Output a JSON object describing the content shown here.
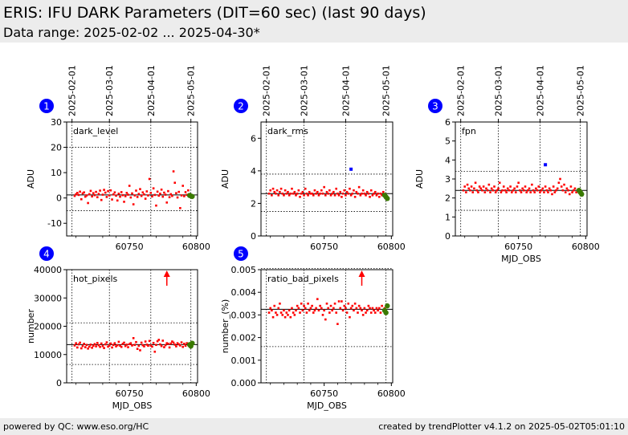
{
  "header": {
    "title": "ERIS: IFU DARK Parameters (DIT=60 sec) (last 90 days)",
    "subtitle": "Data range: 2025-02-02 ... 2025-04-30*"
  },
  "footer": {
    "left": "powered by QC: www.eso.org/HC",
    "right": "created by trendPlotter v4.1.2 on 2025-05-02T05:01:10"
  },
  "colors": {
    "data": "#ff0000",
    "outlier": "#0000ff",
    "latest": "#3a7a00",
    "badge": "#0000ff",
    "header_bg": "#ececec"
  },
  "chart_data": [
    {
      "type": "scatter",
      "badge": "1",
      "name": "dark_level",
      "ylabel": "ADU",
      "xlabel": "",
      "xlim": [
        60703,
        60801
      ],
      "ylim": [
        -15,
        30
      ],
      "yticks": [
        -10,
        0,
        10,
        20,
        30
      ],
      "xticks": [
        60750,
        60800
      ],
      "date_ticks": [
        {
          "x": 60707,
          "label": "2025-02-01"
        },
        {
          "x": 60735,
          "label": "2025-03-01"
        },
        {
          "x": 60766,
          "label": "2025-04-01"
        },
        {
          "x": 60796,
          "label": "2025-05-01"
        }
      ],
      "ref_line": 1.2,
      "limits": [
        -5,
        20
      ],
      "x": [
        60709,
        60710,
        60711,
        60712,
        60713,
        60714,
        60715,
        60716,
        60717,
        60718,
        60719,
        60720,
        60721,
        60722,
        60723,
        60724,
        60725,
        60726,
        60727,
        60728,
        60729,
        60730,
        60731,
        60732,
        60733,
        60734,
        60735,
        60736,
        60737,
        60738,
        60739,
        60740,
        60741,
        60742,
        60743,
        60744,
        60745,
        60746,
        60747,
        60748,
        60749,
        60750,
        60751,
        60752,
        60753,
        60754,
        60755,
        60756,
        60757,
        60758,
        60759,
        60760,
        60761,
        60762,
        60763,
        60764,
        60765,
        60766,
        60767,
        60768,
        60769,
        60770,
        60771,
        60772,
        60773,
        60774,
        60775,
        60776,
        60777,
        60778,
        60779,
        60780,
        60781,
        60782,
        60783,
        60784,
        60785,
        60786,
        60787,
        60788,
        60789,
        60790,
        60791,
        60792,
        60793,
        60794,
        60795
      ],
      "y": [
        0.8,
        1.5,
        2.0,
        1.2,
        2.5,
        -0.5,
        1.8,
        2.2,
        0.5,
        1.0,
        -2.0,
        1.5,
        2.8,
        0.6,
        1.9,
        1.1,
        2.4,
        0.3,
        1.6,
        2.9,
        -0.8,
        1.3,
        3.2,
        2.1,
        0.4,
        2.7,
        1.0,
        3.0,
        -0.6,
        1.4,
        2.2,
        0.9,
        -1.0,
        1.7,
        0.5,
        2.3,
        1.1,
        -1.5,
        0.7,
        2.0,
        1.3,
        4.8,
        0.2,
        1.8,
        -2.5,
        1.0,
        2.9,
        0.4,
        1.6,
        3.5,
        0.8,
        2.2,
        1.4,
        -0.3,
        2.6,
        1.0,
        7.5,
        2.0,
        0.6,
        3.8,
        1.2,
        -3.0,
        2.5,
        0.9,
        1.7,
        3.3,
        0.5,
        2.1,
        1.3,
        -1.8,
        2.7,
        0.3,
        1.5,
        0.8,
        10.5,
        6.0,
        1.9,
        0.2,
        2.4,
        -4.0,
        1.0,
        4.8,
        0.7,
        2.3,
        1.2,
        3.0,
        0.5
      ],
      "latest_x": [
        60795,
        60796,
        60797
      ],
      "latest_y": [
        1.0,
        0.8,
        0.6
      ],
      "outliers": []
    },
    {
      "type": "scatter",
      "badge": "2",
      "name": "dark_rms",
      "ylabel": "ADU",
      "xlabel": "",
      "xlim": [
        60703,
        60801
      ],
      "ylim": [
        0,
        7
      ],
      "yticks": [
        0,
        2,
        4,
        6
      ],
      "xticks": [
        60750,
        60800
      ],
      "date_ticks": [
        {
          "x": 60707,
          "label": "2025-02-01"
        },
        {
          "x": 60735,
          "label": "2025-03-01"
        },
        {
          "x": 60766,
          "label": "2025-04-01"
        },
        {
          "x": 60796,
          "label": "2025-05-01"
        }
      ],
      "ref_line": 2.6,
      "limits": [
        1.5,
        3.8
      ],
      "x": [
        60709,
        60710,
        60711,
        60712,
        60713,
        60714,
        60715,
        60716,
        60717,
        60718,
        60719,
        60720,
        60721,
        60722,
        60723,
        60724,
        60725,
        60726,
        60727,
        60728,
        60729,
        60730,
        60731,
        60732,
        60733,
        60734,
        60735,
        60736,
        60737,
        60738,
        60739,
        60740,
        60741,
        60742,
        60743,
        60744,
        60745,
        60746,
        60747,
        60748,
        60749,
        60750,
        60751,
        60752,
        60753,
        60754,
        60755,
        60756,
        60757,
        60758,
        60759,
        60760,
        60761,
        60762,
        60763,
        60764,
        60765,
        60766,
        60767,
        60768,
        60769,
        60770,
        60771,
        60772,
        60773,
        60774,
        60775,
        60776,
        60777,
        60778,
        60779,
        60780,
        60781,
        60782,
        60783,
        60784,
        60785,
        60786,
        60787,
        60788,
        60789,
        60790,
        60791,
        60792,
        60793,
        60794,
        60795
      ],
      "y": [
        2.6,
        2.8,
        2.5,
        2.9,
        2.7,
        2.6,
        2.8,
        2.5,
        2.7,
        2.9,
        2.6,
        2.5,
        2.8,
        2.6,
        2.7,
        2.5,
        2.6,
        2.9,
        2.6,
        2.7,
        2.5,
        2.6,
        2.8,
        2.4,
        2.6,
        2.7,
        2.5,
        2.9,
        2.6,
        2.5,
        2.7,
        2.6,
        2.6,
        2.5,
        2.8,
        2.6,
        2.7,
        2.5,
        2.6,
        2.8,
        2.6,
        3.0,
        2.5,
        2.7,
        2.6,
        2.8,
        2.5,
        2.6,
        2.7,
        2.5,
        2.9,
        2.6,
        2.5,
        2.7,
        2.4,
        2.6,
        2.8,
        2.5,
        2.7,
        2.6,
        2.9,
        2.5,
        2.6,
        2.8,
        2.4,
        2.7,
        2.6,
        3.0,
        2.5,
        2.6,
        2.8,
        2.6,
        2.5,
        2.7,
        2.6,
        2.4,
        2.8,
        2.5,
        2.6,
        2.7,
        2.5,
        2.6,
        2.4,
        2.6,
        2.5,
        2.7,
        2.5
      ],
      "latest_x": [
        60795,
        60796,
        60797
      ],
      "latest_y": [
        2.5,
        2.4,
        2.3
      ],
      "outliers": [
        {
          "x": 60770,
          "y": 4.1
        }
      ]
    },
    {
      "type": "scatter",
      "badge": "3",
      "name": "fpn",
      "ylabel": "ADU",
      "xlabel": "MJD_OBS",
      "xlim": [
        60703,
        60801
      ],
      "ylim": [
        0,
        6
      ],
      "yticks": [
        0,
        1,
        2,
        3,
        4,
        5,
        6
      ],
      "xticks": [
        60750,
        60800
      ],
      "date_ticks": [
        {
          "x": 60707,
          "label": "2025-02-01"
        },
        {
          "x": 60735,
          "label": "2025-03-01"
        },
        {
          "x": 60766,
          "label": "2025-04-01"
        },
        {
          "x": 60796,
          "label": "2025-05-01"
        }
      ],
      "ref_line": 2.4,
      "limits": [
        1.35,
        3.4
      ],
      "x": [
        60709,
        60710,
        60711,
        60712,
        60713,
        60714,
        60715,
        60716,
        60717,
        60718,
        60719,
        60720,
        60721,
        60722,
        60723,
        60724,
        60725,
        60726,
        60727,
        60728,
        60729,
        60730,
        60731,
        60732,
        60733,
        60734,
        60735,
        60736,
        60737,
        60738,
        60739,
        60740,
        60741,
        60742,
        60743,
        60744,
        60745,
        60746,
        60747,
        60748,
        60749,
        60750,
        60751,
        60752,
        60753,
        60754,
        60755,
        60756,
        60757,
        60758,
        60759,
        60760,
        60761,
        60762,
        60763,
        60764,
        60765,
        60766,
        60767,
        60768,
        60769,
        60770,
        60771,
        60772,
        60773,
        60774,
        60775,
        60776,
        60777,
        60778,
        60779,
        60780,
        60781,
        60782,
        60783,
        60784,
        60785,
        60786,
        60787,
        60788,
        60789,
        60790,
        60791,
        60792,
        60793,
        60794,
        60795
      ],
      "y": [
        2.4,
        2.6,
        2.3,
        2.7,
        2.5,
        2.4,
        2.6,
        2.3,
        2.5,
        2.8,
        2.4,
        2.3,
        2.6,
        2.5,
        2.4,
        2.6,
        2.3,
        2.5,
        2.4,
        2.7,
        2.3,
        2.5,
        2.4,
        2.6,
        2.3,
        2.4,
        2.5,
        2.8,
        2.3,
        2.4,
        2.6,
        2.4,
        2.3,
        2.5,
        2.4,
        2.6,
        2.3,
        2.4,
        2.5,
        2.3,
        2.6,
        2.8,
        2.4,
        2.3,
        2.5,
        2.4,
        2.6,
        2.3,
        2.4,
        2.5,
        2.3,
        2.7,
        2.4,
        2.3,
        2.5,
        2.4,
        2.6,
        2.3,
        2.4,
        2.5,
        2.3,
        2.6,
        2.4,
        2.3,
        2.5,
        2.4,
        2.2,
        2.6,
        2.3,
        2.4,
        2.5,
        2.8,
        3.0,
        2.6,
        2.4,
        2.7,
        2.3,
        2.5,
        2.4,
        2.2,
        2.6,
        2.3,
        2.4,
        2.5,
        2.3,
        2.4,
        2.3
      ],
      "latest_x": [
        60795,
        60796,
        60797
      ],
      "latest_y": [
        2.4,
        2.3,
        2.2
      ],
      "outliers": [
        {
          "x": 60770,
          "y": 3.75
        }
      ]
    },
    {
      "type": "scatter",
      "badge": "4",
      "name": "hot_pixels",
      "ylabel": "number",
      "xlabel": "MJD_OBS",
      "xlim": [
        60703,
        60801
      ],
      "ylim": [
        0,
        40000
      ],
      "yticks": [
        0,
        10000,
        20000,
        30000,
        40000
      ],
      "xticks": [
        60750,
        60800
      ],
      "date_ticks": [],
      "ref_line": 13500,
      "limits": [
        6500,
        21200
      ],
      "x": [
        60709,
        60710,
        60711,
        60712,
        60713,
        60714,
        60715,
        60716,
        60717,
        60718,
        60719,
        60720,
        60721,
        60722,
        60723,
        60724,
        60725,
        60726,
        60727,
        60728,
        60729,
        60730,
        60731,
        60732,
        60733,
        60734,
        60735,
        60736,
        60737,
        60738,
        60739,
        60740,
        60741,
        60742,
        60743,
        60744,
        60745,
        60746,
        60747,
        60748,
        60749,
        60750,
        60751,
        60752,
        60753,
        60754,
        60755,
        60756,
        60757,
        60758,
        60759,
        60760,
        60761,
        60762,
        60763,
        60764,
        60765,
        60766,
        60767,
        60768,
        60769,
        60770,
        60771,
        60772,
        60773,
        60774,
        60775,
        60776,
        60777,
        60778,
        60779,
        60780,
        60781,
        60782,
        60783,
        60784,
        60785,
        60786,
        60787,
        60788,
        60789,
        60790,
        60791,
        60792,
        60793,
        60794,
        60795
      ],
      "y": [
        13200,
        14000,
        12500,
        13600,
        14200,
        12200,
        13000,
        13800,
        12600,
        13400,
        12100,
        12800,
        13500,
        12400,
        13100,
        13700,
        12900,
        14100,
        13300,
        12700,
        13900,
        13000,
        12300,
        13600,
        14300,
        12800,
        13200,
        13900,
        12500,
        13400,
        14000,
        12900,
        13300,
        14500,
        13100,
        12700,
        13800,
        14200,
        13000,
        13500,
        12600,
        13700,
        14000,
        13200,
        15800,
        13400,
        14400,
        12000,
        13100,
        11500,
        14200,
        13300,
        12900,
        14600,
        13500,
        13100,
        14800,
        13200,
        12800,
        14100,
        11000,
        13400,
        14700,
        15200,
        13600,
        13000,
        14900,
        12600,
        13300,
        14000,
        13800,
        12500,
        13900,
        14600,
        14200,
        13500,
        12900,
        14000,
        13600,
        13200,
        14300,
        12700,
        13800,
        13100,
        14000,
        13500,
        12900
      ],
      "latest_x": [
        60795,
        60796,
        60797
      ],
      "latest_y": [
        13500,
        13000,
        14000
      ],
      "outliers": [],
      "arrows_up": [
        60778
      ]
    },
    {
      "type": "scatter",
      "badge": "5",
      "name": "ratio_bad_pixels",
      "ylabel": "number_(%)",
      "xlabel": "MJD_OBS",
      "xlim": [
        60703,
        60801
      ],
      "ylim": [
        0,
        0.005
      ],
      "yticks": [
        0,
        0.001,
        0.002,
        0.003,
        0.004,
        0.005
      ],
      "ytick_labels": [
        "0.000",
        "0.001",
        "0.002",
        "0.003",
        "0.004",
        "0.005"
      ],
      "xticks": [
        60750,
        60800
      ],
      "date_ticks": [],
      "ref_line": 0.00325,
      "limits": [
        0.0016,
        0.00505
      ],
      "x": [
        60709,
        60710,
        60711,
        60712,
        60713,
        60714,
        60715,
        60716,
        60717,
        60718,
        60719,
        60720,
        60721,
        60722,
        60723,
        60724,
        60725,
        60726,
        60727,
        60728,
        60729,
        60730,
        60731,
        60732,
        60733,
        60734,
        60735,
        60736,
        60737,
        60738,
        60739,
        60740,
        60741,
        60742,
        60743,
        60744,
        60745,
        60746,
        60747,
        60748,
        60749,
        60750,
        60751,
        60752,
        60753,
        60754,
        60755,
        60756,
        60757,
        60758,
        60759,
        60760,
        60761,
        60762,
        60763,
        60764,
        60765,
        60766,
        60767,
        60768,
        60769,
        60770,
        60771,
        60772,
        60773,
        60774,
        60775,
        60776,
        60777,
        60778,
        60779,
        60780,
        60781,
        60782,
        60783,
        60784,
        60785,
        60786,
        60787,
        60788,
        60789,
        60790,
        60791,
        60792,
        60793,
        60794,
        60795
      ],
      "y": [
        0.0031,
        0.0033,
        0.0032,
        0.0029,
        0.0034,
        0.0031,
        0.003,
        0.0033,
        0.0035,
        0.0031,
        0.003,
        0.0032,
        0.0029,
        0.0031,
        0.003,
        0.0032,
        0.0029,
        0.0033,
        0.0031,
        0.003,
        0.0032,
        0.0034,
        0.0033,
        0.0031,
        0.0035,
        0.0032,
        0.0034,
        0.0033,
        0.0031,
        0.0035,
        0.0032,
        0.0033,
        0.0034,
        0.0031,
        0.0032,
        0.0033,
        0.0037,
        0.0032,
        0.0034,
        0.0033,
        0.003,
        0.0032,
        0.0028,
        0.0035,
        0.0033,
        0.0031,
        0.0034,
        0.0032,
        0.0033,
        0.0035,
        0.0031,
        0.0026,
        0.0036,
        0.0033,
        0.0036,
        0.0032,
        0.0034,
        0.0033,
        0.0031,
        0.0035,
        0.0029,
        0.0033,
        0.0034,
        0.0032,
        0.0035,
        0.0033,
        0.0031,
        0.0034,
        0.0033,
        0.0032,
        0.003,
        0.0033,
        0.0031,
        0.0032,
        0.0034,
        0.0033,
        0.0031,
        0.0033,
        0.0032,
        0.0031,
        0.0033,
        0.0032,
        0.0033,
        0.0031,
        0.0034,
        0.0032,
        0.0033
      ],
      "latest_x": [
        60795,
        60796,
        60797
      ],
      "latest_y": [
        0.0032,
        0.0031,
        0.0034
      ],
      "outliers": [],
      "arrows_up": [
        60778
      ]
    }
  ]
}
